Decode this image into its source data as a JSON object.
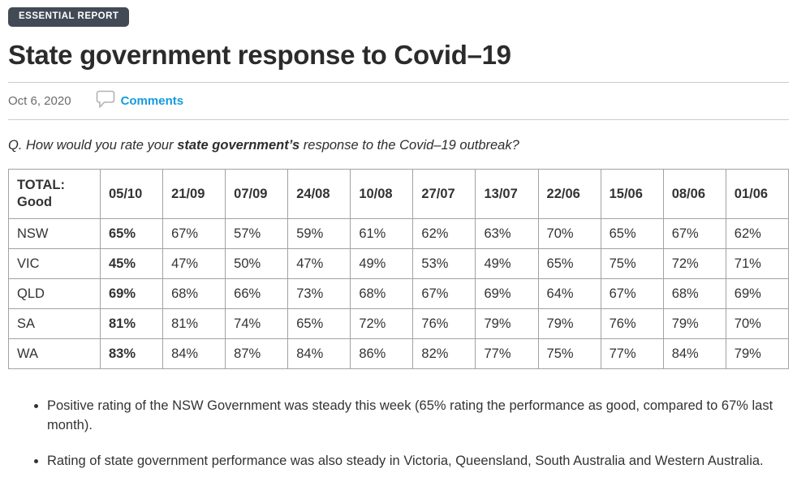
{
  "badge": {
    "label": "ESSENTIAL REPORT"
  },
  "article": {
    "title": "State government response to Covid–19"
  },
  "meta": {
    "date": "Oct 6, 2020",
    "comments_label": "Comments",
    "comments_icon": "speech-bubble-icon"
  },
  "question": {
    "prefix": "Q. How would you rate your ",
    "emphasis": "state government’s",
    "suffix": " response to the Covid–19 outbreak?"
  },
  "table": {
    "corner": {
      "line1": "TOTAL:",
      "line2": "Good"
    },
    "columns": [
      "05/10",
      "21/09",
      "07/09",
      "24/08",
      "10/08",
      "27/07",
      "13/07",
      "22/06",
      "15/06",
      "08/06",
      "01/06"
    ],
    "rows": [
      {
        "label": "NSW",
        "values": [
          "65%",
          "67%",
          "57%",
          "59%",
          "61%",
          "62%",
          "63%",
          "70%",
          "65%",
          "67%",
          "62%"
        ]
      },
      {
        "label": "VIC",
        "values": [
          "45%",
          "47%",
          "50%",
          "47%",
          "49%",
          "53%",
          "49%",
          "65%",
          "75%",
          "72%",
          "71%"
        ]
      },
      {
        "label": "QLD",
        "values": [
          "69%",
          "68%",
          "66%",
          "73%",
          "68%",
          "67%",
          "69%",
          "64%",
          "67%",
          "68%",
          "69%"
        ]
      },
      {
        "label": "SA",
        "values": [
          "81%",
          "81%",
          "74%",
          "65%",
          "72%",
          "76%",
          "79%",
          "79%",
          "76%",
          "79%",
          "70%"
        ]
      },
      {
        "label": "WA",
        "values": [
          "83%",
          "84%",
          "87%",
          "84%",
          "86%",
          "82%",
          "77%",
          "75%",
          "77%",
          "84%",
          "79%"
        ]
      }
    ]
  },
  "bullets": [
    "Positive rating of the NSW Government was steady this week (65% rating the performance as good, compared to 67% last month).",
    "Rating of state government performance was also steady in Victoria, Queensland, South Australia and Western Australia."
  ],
  "colors": {
    "accent_blue": "#149bdf",
    "badge_bg": "#424a55",
    "table_border": "#a2a2a2",
    "divider": "#cccccc"
  }
}
